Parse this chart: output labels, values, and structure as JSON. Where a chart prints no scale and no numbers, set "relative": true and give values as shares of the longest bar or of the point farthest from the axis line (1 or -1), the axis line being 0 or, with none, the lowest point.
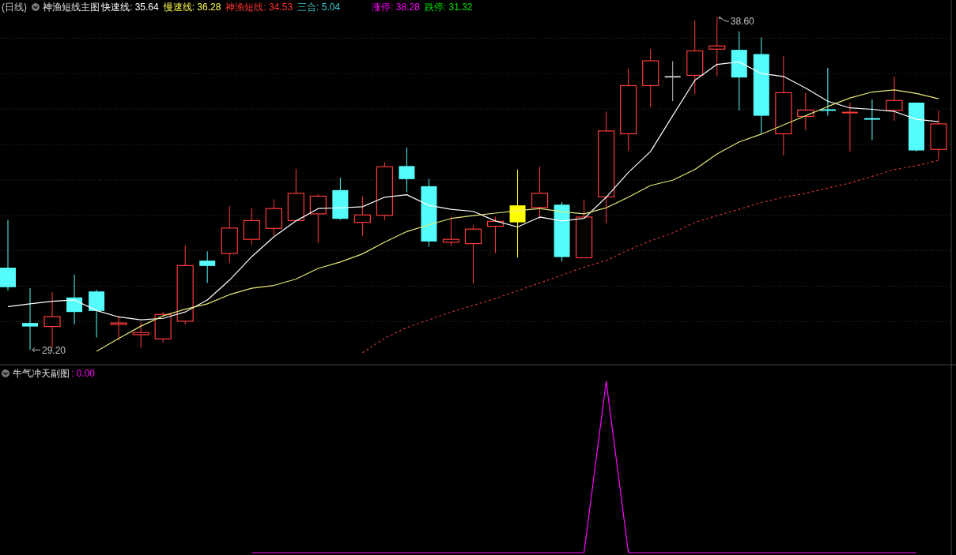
{
  "chart_data": [
    {
      "type": "candlestick",
      "title": "(日线)",
      "subtitle": "神渔短线主图",
      "categories": [
        null,
        null,
        null,
        null,
        null,
        null,
        null,
        null,
        null,
        null,
        null,
        null,
        null,
        null,
        null,
        null,
        null,
        null,
        null,
        null,
        null,
        null,
        null,
        null,
        null,
        null,
        null,
        null,
        null,
        null,
        null,
        null,
        null,
        null,
        null,
        null,
        null,
        null,
        null,
        null,
        null,
        null,
        null
      ],
      "ohlc": [
        [
          31.52,
          32.87,
          30.88,
          30.97
        ],
        [
          29.96,
          30.94,
          29.2,
          29.86
        ],
        [
          29.86,
          30.83,
          29.27,
          30.14
        ],
        [
          30.68,
          31.33,
          29.92,
          30.27
        ],
        [
          30.85,
          30.9,
          29.55,
          30.3
        ],
        [
          29.92,
          30.16,
          29.47,
          29.96
        ],
        [
          29.63,
          29.98,
          29.26,
          29.69
        ],
        [
          29.51,
          30.27,
          29.4,
          30.2
        ],
        [
          30.01,
          32.15,
          29.92,
          31.58
        ],
        [
          31.72,
          31.98,
          31.09,
          31.57
        ],
        [
          31.92,
          33.26,
          31.65,
          32.64
        ],
        [
          32.32,
          33.21,
          32.17,
          32.85
        ],
        [
          32.63,
          33.45,
          32.44,
          33.19
        ],
        [
          32.85,
          34.31,
          32.84,
          33.62
        ],
        [
          33.04,
          33.59,
          32.22,
          33.54
        ],
        [
          33.71,
          34.06,
          32.87,
          32.9
        ],
        [
          32.8,
          33.53,
          32.41,
          33.01
        ],
        [
          33.0,
          34.49,
          32.86,
          34.37
        ],
        [
          34.39,
          34.91,
          33.65,
          34.02
        ],
        [
          33.82,
          34.02,
          32.11,
          32.26
        ],
        [
          32.24,
          32.96,
          32.13,
          32.32
        ],
        [
          32.2,
          32.73,
          31.07,
          32.61
        ],
        [
          32.69,
          32.96,
          31.93,
          32.83
        ],
        [
          33.28,
          34.29,
          31.81,
          32.8
        ],
        [
          33.22,
          34.37,
          32.89,
          33.62
        ],
        [
          33.3,
          33.37,
          31.7,
          31.82
        ],
        [
          31.8,
          33.45,
          31.8,
          32.95
        ],
        [
          33.52,
          35.93,
          32.78,
          35.38
        ],
        [
          35.3,
          37.14,
          34.82,
          36.66
        ],
        [
          36.66,
          37.7,
          36.05,
          37.36
        ],
        [
          36.91,
          37.35,
          36.22,
          36.91
        ],
        [
          36.95,
          38.5,
          36.42,
          37.64
        ],
        [
          37.69,
          38.6,
          36.92,
          37.78
        ],
        [
          37.67,
          38.19,
          35.96,
          36.89
        ],
        [
          37.55,
          38.02,
          35.29,
          35.81
        ],
        [
          35.3,
          37.49,
          34.69,
          36.46
        ],
        [
          35.79,
          36.46,
          35.4,
          35.97
        ],
        [
          35.97,
          37.16,
          35.81,
          35.97
        ],
        [
          35.9,
          36.18,
          34.8,
          35.9
        ],
        [
          35.72,
          36.27,
          35.12,
          35.72
        ],
        [
          35.96,
          36.92,
          35.67,
          36.24
        ],
        [
          36.18,
          36.18,
          34.8,
          34.83
        ],
        [
          34.86,
          35.96,
          34.58,
          35.58
        ]
      ],
      "colors": [
        "#54fcfc",
        "#54fcfc",
        "#ff3c3c",
        "#54fcfc",
        "#54fcfc",
        "#ff3c3c",
        "#ff3c3c",
        "#ff3c3c",
        "#ff3c3c",
        "#54fcfc",
        "#ff3c3c",
        "#ff3c3c",
        "#ff3c3c",
        "#ff3c3c",
        "#ff3c3c",
        "#54fcfc",
        "#ff3c3c",
        "#ff3c3c",
        "#54fcfc",
        "#54fcfc",
        "#ff3c3c",
        "#ff3c3c",
        "#ff3c3c",
        "#ffff00",
        "#ff3c3c",
        "#54fcfc",
        "#ff3c3c",
        "#ff3c3c",
        "#ff3c3c",
        "#ff3c3c",
        "#c0c0c0",
        "#ff3c3c",
        "#ff3c3c",
        "#54fcfc",
        "#54fcfc",
        "#ff3c3c",
        "#ff3c3c",
        "#54fcfc",
        "#ff3c3c",
        "#54fcfc",
        "#ff3c3c",
        "#54fcfc",
        "#ff3c3c"
      ],
      "series": [
        {
          "type": "line",
          "color": "#ffffff",
          "values": [
            30.42,
            30.5,
            30.57,
            30.61,
            30.31,
            30.13,
            30.05,
            30.09,
            30.27,
            30.61,
            31.17,
            31.83,
            32.39,
            32.84,
            33.19,
            33.21,
            33.24,
            33.51,
            33.58,
            33.28,
            33.17,
            33.11,
            32.84,
            32.67,
            32.95,
            32.84,
            32.91,
            33.51,
            34.21,
            34.8,
            35.81,
            36.81,
            37.26,
            37.33,
            37.0,
            36.92,
            36.59,
            36.22,
            36.03,
            35.99,
            35.93,
            35.71,
            35.64
          ]
        },
        {
          "type": "line",
          "color": "#e8e878",
          "values": [
            null,
            null,
            null,
            null,
            29.16,
            29.52,
            29.87,
            30.16,
            30.35,
            30.5,
            30.76,
            30.94,
            31.02,
            31.2,
            31.5,
            31.68,
            31.91,
            32.24,
            32.54,
            32.73,
            32.91,
            32.99,
            33.06,
            33.13,
            33.19,
            33.1,
            33.04,
            33.21,
            33.51,
            33.84,
            33.99,
            34.29,
            34.73,
            35.07,
            35.29,
            35.55,
            35.81,
            36.07,
            36.31,
            36.48,
            36.54,
            36.44,
            36.29
          ]
        },
        {
          "type": "line",
          "color": "#c83232",
          "line_style": "dashed",
          "values": [
            null,
            null,
            null,
            null,
            null,
            null,
            null,
            null,
            null,
            null,
            null,
            null,
            null,
            null,
            null,
            null,
            29.12,
            29.53,
            29.83,
            30.05,
            30.27,
            30.46,
            30.65,
            30.87,
            31.09,
            31.31,
            31.54,
            31.72,
            32.02,
            32.28,
            32.5,
            32.8,
            32.99,
            33.17,
            33.36,
            33.51,
            33.62,
            33.77,
            33.91,
            34.1,
            34.29,
            34.4,
            34.55
          ]
        }
      ],
      "yticks": [
        {
          "value": 30,
          "label": null
        },
        {
          "value": 31,
          "label": null
        },
        {
          "value": 32,
          "label": null
        },
        {
          "value": 33,
          "label": null
        },
        {
          "value": 34,
          "label": null
        },
        {
          "value": 35,
          "label": null
        },
        {
          "value": 36,
          "label": null
        },
        {
          "value": 37,
          "label": null
        },
        {
          "value": 38,
          "label": null
        }
      ],
      "grid": "y",
      "annotations": [
        "快速线: 35.64",
        "慢速线: 36.28",
        "神渔短线: 34.53",
        "三合: 5.04",
        "涨停: 38.28",
        "跌停: 31.32",
        "38.60",
        "29.20"
      ]
    },
    {
      "type": "line",
      "title": "牛气冲天副图",
      "relative": true,
      "color": "#ff00ff",
      "categories": [
        null,
        null,
        null,
        null,
        null,
        null,
        null,
        null,
        null,
        null,
        null,
        null,
        null,
        null,
        null,
        null,
        null,
        null,
        null,
        null,
        null,
        null,
        null,
        null,
        null,
        null,
        null,
        null,
        null,
        null,
        null,
        null,
        null,
        null,
        null,
        null,
        null,
        null,
        null,
        null,
        null,
        null,
        null
      ],
      "values": [
        null,
        null,
        null,
        null,
        null,
        null,
        null,
        null,
        null,
        null,
        null,
        0,
        0,
        0,
        0,
        0,
        0,
        0,
        0,
        0,
        0,
        0,
        0,
        0,
        0,
        0,
        0,
        1,
        0,
        0,
        0,
        0,
        0,
        0,
        0,
        0,
        0,
        0,
        0,
        0,
        0,
        0,
        null
      ],
      "annotations": [
        ": 0.00"
      ]
    }
  ]
}
